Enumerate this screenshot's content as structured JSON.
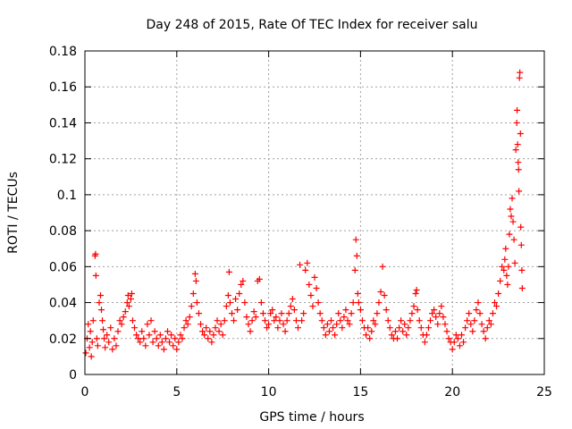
{
  "chart_data": {
    "type": "scatter",
    "title": "Day 248 of 2015, Rate Of TEC Index for receiver salu",
    "xlabel": "GPS time / hours",
    "ylabel": "ROTI / TECUs",
    "xlim": [
      0,
      25
    ],
    "ylim": [
      0,
      0.18
    ],
    "xticks": [
      0,
      5,
      10,
      15,
      20,
      25
    ],
    "xtick_labels": [
      "0",
      "5",
      "10",
      "15",
      "20",
      "25"
    ],
    "yticks": [
      0,
      0.02,
      0.04,
      0.06,
      0.08,
      0.1,
      0.12,
      0.14,
      0.16,
      0.18
    ],
    "ytick_labels": [
      "0",
      "0.02",
      "0.04",
      "0.06",
      "0.08",
      "0.1",
      "0.12",
      "0.14",
      "0.16",
      "0.18"
    ],
    "grid": true,
    "marker": "+",
    "marker_color": "#ff0000",
    "series": [
      {
        "name": "ROTI",
        "points": [
          [
            0.05,
            0.012
          ],
          [
            0.12,
            0.02
          ],
          [
            0.18,
            0.028
          ],
          [
            0.25,
            0.015
          ],
          [
            0.3,
            0.024
          ],
          [
            0.35,
            0.01
          ],
          [
            0.4,
            0.018
          ],
          [
            0.45,
            0.03
          ],
          [
            0.55,
            0.066
          ],
          [
            0.58,
            0.067
          ],
          [
            0.6,
            0.055
          ],
          [
            0.65,
            0.02
          ],
          [
            0.7,
            0.016
          ],
          [
            0.78,
            0.04
          ],
          [
            0.85,
            0.044
          ],
          [
            0.9,
            0.036
          ],
          [
            0.95,
            0.03
          ],
          [
            1.0,
            0.025
          ],
          [
            1.05,
            0.02
          ],
          [
            1.1,
            0.015
          ],
          [
            1.2,
            0.022
          ],
          [
            1.3,
            0.018
          ],
          [
            1.4,
            0.026
          ],
          [
            1.5,
            0.014
          ],
          [
            1.6,
            0.02
          ],
          [
            1.7,
            0.016
          ],
          [
            1.8,
            0.024
          ],
          [
            1.9,
            0.03
          ],
          [
            2.0,
            0.028
          ],
          [
            2.1,
            0.032
          ],
          [
            2.2,
            0.035
          ],
          [
            2.3,
            0.04
          ],
          [
            2.35,
            0.044
          ],
          [
            2.4,
            0.038
          ],
          [
            2.5,
            0.042
          ],
          [
            2.55,
            0.045
          ],
          [
            2.6,
            0.03
          ],
          [
            2.7,
            0.026
          ],
          [
            2.8,
            0.022
          ],
          [
            2.9,
            0.02
          ],
          [
            3.0,
            0.018
          ],
          [
            3.1,
            0.024
          ],
          [
            3.2,
            0.02
          ],
          [
            3.3,
            0.016
          ],
          [
            3.4,
            0.028
          ],
          [
            3.5,
            0.022
          ],
          [
            3.6,
            0.03
          ],
          [
            3.7,
            0.018
          ],
          [
            3.8,
            0.024
          ],
          [
            3.9,
            0.02
          ],
          [
            4.0,
            0.016
          ],
          [
            4.1,
            0.022
          ],
          [
            4.2,
            0.018
          ],
          [
            4.3,
            0.014
          ],
          [
            4.4,
            0.02
          ],
          [
            4.5,
            0.024
          ],
          [
            4.6,
            0.018
          ],
          [
            4.7,
            0.022
          ],
          [
            4.8,
            0.016
          ],
          [
            4.9,
            0.02
          ],
          [
            5.0,
            0.014
          ],
          [
            5.1,
            0.018
          ],
          [
            5.2,
            0.022
          ],
          [
            5.3,
            0.02
          ],
          [
            5.4,
            0.026
          ],
          [
            5.5,
            0.03
          ],
          [
            5.6,
            0.028
          ],
          [
            5.7,
            0.032
          ],
          [
            5.8,
            0.038
          ],
          [
            5.9,
            0.045
          ],
          [
            6.0,
            0.056
          ],
          [
            6.05,
            0.052
          ],
          [
            6.1,
            0.04
          ],
          [
            6.2,
            0.034
          ],
          [
            6.3,
            0.028
          ],
          [
            6.4,
            0.024
          ],
          [
            6.5,
            0.022
          ],
          [
            6.6,
            0.026
          ],
          [
            6.7,
            0.02
          ],
          [
            6.8,
            0.024
          ],
          [
            6.9,
            0.018
          ],
          [
            7.0,
            0.022
          ],
          [
            7.1,
            0.026
          ],
          [
            7.2,
            0.03
          ],
          [
            7.3,
            0.024
          ],
          [
            7.4,
            0.028
          ],
          [
            7.5,
            0.022
          ],
          [
            7.6,
            0.03
          ],
          [
            7.7,
            0.038
          ],
          [
            7.8,
            0.044
          ],
          [
            7.85,
            0.057
          ],
          [
            7.9,
            0.04
          ],
          [
            8.0,
            0.034
          ],
          [
            8.1,
            0.03
          ],
          [
            8.2,
            0.042
          ],
          [
            8.3,
            0.036
          ],
          [
            8.4,
            0.045
          ],
          [
            8.5,
            0.05
          ],
          [
            8.6,
            0.052
          ],
          [
            8.7,
            0.04
          ],
          [
            8.8,
            0.032
          ],
          [
            8.9,
            0.028
          ],
          [
            9.0,
            0.024
          ],
          [
            9.1,
            0.03
          ],
          [
            9.2,
            0.035
          ],
          [
            9.3,
            0.032
          ],
          [
            9.4,
            0.052
          ],
          [
            9.5,
            0.053
          ],
          [
            9.6,
            0.04
          ],
          [
            9.7,
            0.034
          ],
          [
            9.8,
            0.03
          ],
          [
            9.9,
            0.026
          ],
          [
            10.0,
            0.028
          ],
          [
            10.1,
            0.034
          ],
          [
            10.2,
            0.036
          ],
          [
            10.3,
            0.03
          ],
          [
            10.4,
            0.032
          ],
          [
            10.5,
            0.026
          ],
          [
            10.6,
            0.03
          ],
          [
            10.7,
            0.034
          ],
          [
            10.8,
            0.028
          ],
          [
            10.9,
            0.024
          ],
          [
            11.0,
            0.03
          ],
          [
            11.1,
            0.034
          ],
          [
            11.2,
            0.038
          ],
          [
            11.3,
            0.042
          ],
          [
            11.4,
            0.036
          ],
          [
            11.5,
            0.03
          ],
          [
            11.6,
            0.026
          ],
          [
            11.7,
            0.061
          ],
          [
            11.8,
            0.03
          ],
          [
            11.9,
            0.034
          ],
          [
            12.0,
            0.058
          ],
          [
            12.1,
            0.062
          ],
          [
            12.2,
            0.05
          ],
          [
            12.3,
            0.044
          ],
          [
            12.4,
            0.038
          ],
          [
            12.5,
            0.054
          ],
          [
            12.6,
            0.048
          ],
          [
            12.7,
            0.04
          ],
          [
            12.8,
            0.034
          ],
          [
            12.9,
            0.03
          ],
          [
            13.0,
            0.026
          ],
          [
            13.1,
            0.022
          ],
          [
            13.2,
            0.028
          ],
          [
            13.3,
            0.024
          ],
          [
            13.4,
            0.03
          ],
          [
            13.5,
            0.026
          ],
          [
            13.6,
            0.022
          ],
          [
            13.7,
            0.028
          ],
          [
            13.8,
            0.034
          ],
          [
            13.9,
            0.03
          ],
          [
            14.0,
            0.026
          ],
          [
            14.1,
            0.032
          ],
          [
            14.2,
            0.036
          ],
          [
            14.3,
            0.03
          ],
          [
            14.4,
            0.028
          ],
          [
            14.5,
            0.034
          ],
          [
            14.6,
            0.04
          ],
          [
            14.7,
            0.058
          ],
          [
            14.75,
            0.075
          ],
          [
            14.8,
            0.066
          ],
          [
            14.85,
            0.045
          ],
          [
            14.9,
            0.04
          ],
          [
            15.0,
            0.036
          ],
          [
            15.1,
            0.03
          ],
          [
            15.2,
            0.026
          ],
          [
            15.3,
            0.022
          ],
          [
            15.4,
            0.026
          ],
          [
            15.5,
            0.02
          ],
          [
            15.6,
            0.024
          ],
          [
            15.7,
            0.03
          ],
          [
            15.8,
            0.028
          ],
          [
            15.9,
            0.034
          ],
          [
            16.0,
            0.04
          ],
          [
            16.1,
            0.046
          ],
          [
            16.2,
            0.06
          ],
          [
            16.3,
            0.044
          ],
          [
            16.4,
            0.036
          ],
          [
            16.5,
            0.03
          ],
          [
            16.6,
            0.026
          ],
          [
            16.7,
            0.022
          ],
          [
            16.8,
            0.02
          ],
          [
            16.9,
            0.024
          ],
          [
            17.0,
            0.02
          ],
          [
            17.1,
            0.026
          ],
          [
            17.2,
            0.03
          ],
          [
            17.3,
            0.024
          ],
          [
            17.4,
            0.028
          ],
          [
            17.5,
            0.022
          ],
          [
            17.6,
            0.026
          ],
          [
            17.7,
            0.03
          ],
          [
            17.8,
            0.034
          ],
          [
            17.9,
            0.038
          ],
          [
            18.0,
            0.045
          ],
          [
            18.05,
            0.047
          ],
          [
            18.1,
            0.036
          ],
          [
            18.2,
            0.03
          ],
          [
            18.3,
            0.026
          ],
          [
            18.4,
            0.022
          ],
          [
            18.5,
            0.018
          ],
          [
            18.6,
            0.022
          ],
          [
            18.7,
            0.026
          ],
          [
            18.8,
            0.03
          ],
          [
            18.9,
            0.034
          ],
          [
            19.0,
            0.036
          ],
          [
            19.1,
            0.032
          ],
          [
            19.2,
            0.028
          ],
          [
            19.3,
            0.034
          ],
          [
            19.4,
            0.038
          ],
          [
            19.5,
            0.032
          ],
          [
            19.6,
            0.028
          ],
          [
            19.7,
            0.024
          ],
          [
            19.8,
            0.02
          ],
          [
            19.9,
            0.018
          ],
          [
            20.0,
            0.014
          ],
          [
            20.1,
            0.018
          ],
          [
            20.2,
            0.022
          ],
          [
            20.3,
            0.02
          ],
          [
            20.4,
            0.016
          ],
          [
            20.5,
            0.022
          ],
          [
            20.6,
            0.018
          ],
          [
            20.7,
            0.026
          ],
          [
            20.8,
            0.03
          ],
          [
            20.9,
            0.034
          ],
          [
            21.0,
            0.028
          ],
          [
            21.1,
            0.024
          ],
          [
            21.2,
            0.03
          ],
          [
            21.3,
            0.036
          ],
          [
            21.4,
            0.04
          ],
          [
            21.5,
            0.034
          ],
          [
            21.6,
            0.028
          ],
          [
            21.7,
            0.024
          ],
          [
            21.8,
            0.02
          ],
          [
            21.9,
            0.026
          ],
          [
            22.0,
            0.03
          ],
          [
            22.1,
            0.028
          ],
          [
            22.2,
            0.034
          ],
          [
            22.3,
            0.04
          ],
          [
            22.4,
            0.038
          ],
          [
            22.5,
            0.045
          ],
          [
            22.6,
            0.052
          ],
          [
            22.7,
            0.06
          ],
          [
            22.8,
            0.058
          ],
          [
            22.85,
            0.064
          ],
          [
            22.9,
            0.07
          ],
          [
            22.95,
            0.055
          ],
          [
            23.0,
            0.05
          ],
          [
            23.05,
            0.06
          ],
          [
            23.1,
            0.078
          ],
          [
            23.15,
            0.092
          ],
          [
            23.2,
            0.088
          ],
          [
            23.25,
            0.098
          ],
          [
            23.3,
            0.085
          ],
          [
            23.35,
            0.075
          ],
          [
            23.4,
            0.062
          ],
          [
            23.45,
            0.125
          ],
          [
            23.5,
            0.14
          ],
          [
            23.52,
            0.147
          ],
          [
            23.55,
            0.128
          ],
          [
            23.58,
            0.118
          ],
          [
            23.6,
            0.114
          ],
          [
            23.62,
            0.102
          ],
          [
            23.65,
            0.165
          ],
          [
            23.67,
            0.168
          ],
          [
            23.7,
            0.134
          ],
          [
            23.72,
            0.082
          ],
          [
            23.75,
            0.072
          ],
          [
            23.78,
            0.058
          ],
          [
            23.8,
            0.048
          ]
        ]
      }
    ]
  }
}
